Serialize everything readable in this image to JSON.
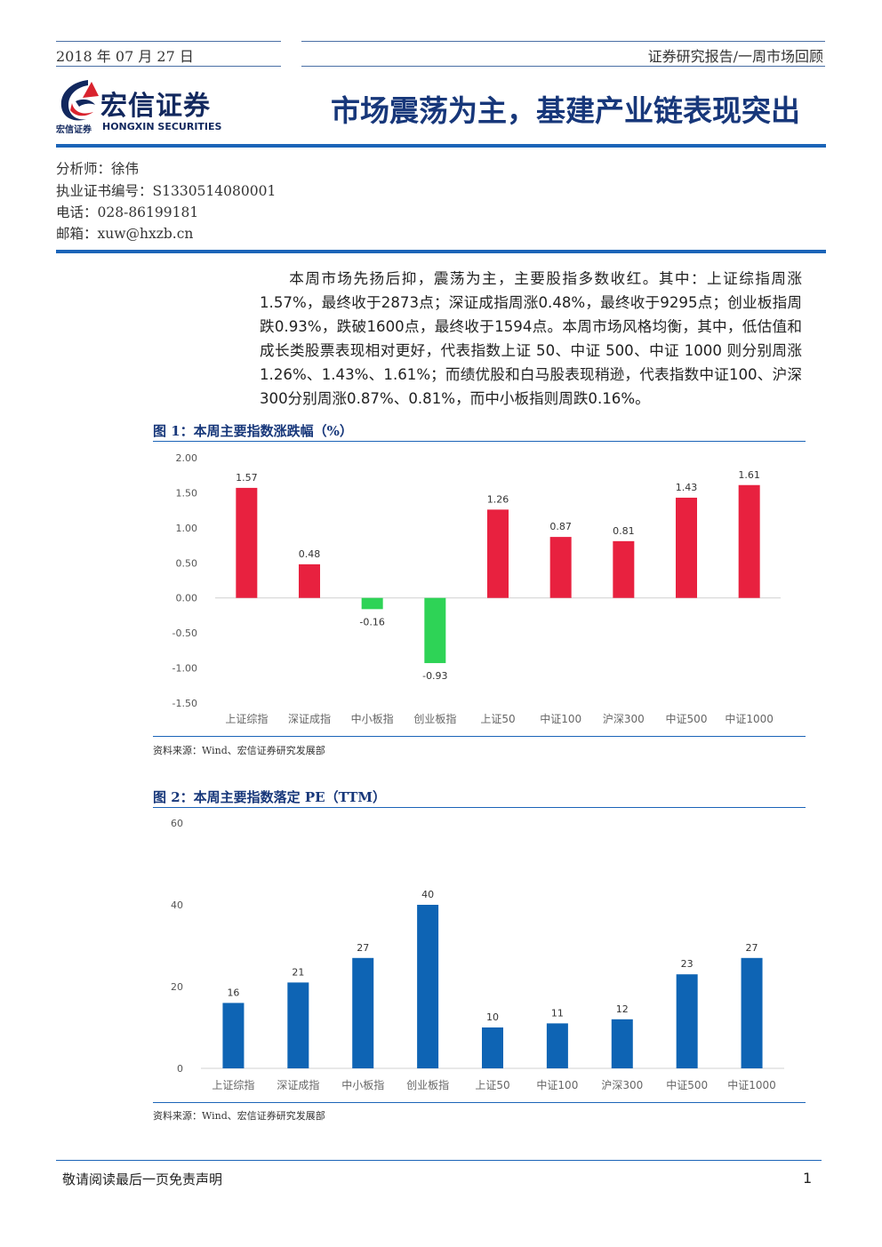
{
  "header": {
    "date": "2018 年 07 月 27 日",
    "series": "证券研究报告/一周市场回顾"
  },
  "logo": {
    "name_cn": "宏信证券",
    "name_cn_small": "宏信证券",
    "name_en": "HONGXIN SECURITIES",
    "colors": {
      "navy": "#12285e",
      "red": "#d9232e"
    }
  },
  "title": "市场震荡为主，基建产业链表现突出",
  "author": {
    "analyst": "分析师：徐伟",
    "license": "执业证书编号：S1330514080001",
    "phone": "电话：028-86199181",
    "email": "邮箱：xuw@hxzb.cn"
  },
  "summary": "本周市场先扬后抑，震荡为主，主要股指多数收红。其中：上证综指周涨1.57%，最终收于2873点；深证成指周涨0.48%，最终收于9295点；创业板指周跌0.93%，跌破1600点，最终收于1594点。本周市场风格均衡，其中，低估值和成长类股票表现相对更好，代表指数上证 50、中证 500、中证 1000 则分别周涨1.26%、1.43%、1.61%；而绩优股和白马股表现稍逊，代表指数中证100、沪深300分别周涨0.87%、0.81%，而中小板指则周跌0.16%。",
  "figures": [
    {
      "title": "图 1：本周主要指数涨跌幅（%）",
      "source": "资料来源：Wind、宏信证券研究发展部"
    },
    {
      "title": "图 2：本周主要指数落定 PE（TTM）",
      "source": "资料来源：Wind、宏信证券研究发展部"
    }
  ],
  "chart_data": [
    {
      "type": "bar",
      "categories": [
        "上证综指",
        "深证成指",
        "中小板指",
        "创业板指",
        "上证50",
        "中证100",
        "沪深300",
        "中证500",
        "中证1000"
      ],
      "values": [
        1.57,
        0.48,
        -0.16,
        -0.93,
        1.26,
        0.87,
        0.81,
        1.43,
        1.61
      ],
      "value_labels": [
        "1.57",
        "0.48",
        "-0.16",
        "-0.93",
        "1.26",
        "0.87",
        "0.81",
        "1.43",
        "1.61"
      ],
      "yticks": [
        "2.00",
        "1.50",
        "1.00",
        "0.50",
        "0.00",
        "-0.50",
        "-1.00",
        "-1.50"
      ],
      "ylim": [
        -1.5,
        2.0
      ],
      "colors": {
        "positive": "#e8213f",
        "negative": "#2ed356"
      },
      "grid": false
    },
    {
      "type": "bar",
      "categories": [
        "上证综指",
        "深证成指",
        "中小板指",
        "创业板指",
        "上证50",
        "中证100",
        "沪深300",
        "中证500",
        "中证1000"
      ],
      "values": [
        16,
        21,
        27,
        40,
        10,
        11,
        12,
        23,
        27
      ],
      "value_labels": [
        "16",
        "21",
        "27",
        "40",
        "10",
        "11",
        "12",
        "23",
        "27"
      ],
      "yticks": [
        "60",
        "40",
        "20",
        "0"
      ],
      "ylim": [
        0,
        60
      ],
      "colors": {
        "bar": "#0e64b4"
      },
      "grid": false
    }
  ],
  "footer": {
    "note": "敬请阅读最后一页免责声明",
    "page": "1"
  }
}
